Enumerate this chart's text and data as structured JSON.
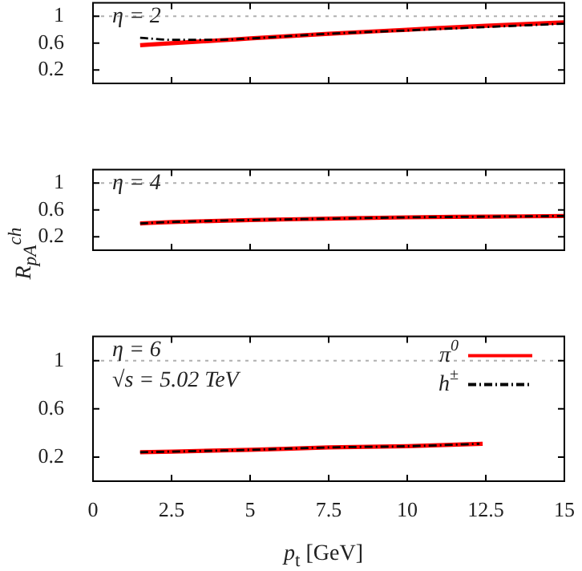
{
  "chart_data": [
    {
      "type": "line",
      "annotations": [
        "η = 2"
      ],
      "xlim": [
        0,
        15
      ],
      "xticks": [
        0,
        2.5,
        5,
        7.5,
        10,
        12.5,
        15
      ],
      "ylim": [
        0,
        1.2
      ],
      "yticks": [
        0.2,
        0.6,
        1
      ],
      "tick_labels": "y",
      "ref_lines": [
        {
          "axis": "y",
          "value": 1,
          "color": "#b0b0b0",
          "line_style": "dotted"
        }
      ],
      "series": [
        {
          "color": "#ff0000",
          "line_style": "solid",
          "x": [
            1.5,
            2.5,
            4,
            5,
            7.5,
            10,
            12.5,
            15
          ],
          "values": [
            0.57,
            0.6,
            0.64,
            0.67,
            0.74,
            0.8,
            0.86,
            0.91
          ]
        },
        {
          "color": "#000000",
          "line_style": "dashed",
          "x": [
            1.5,
            2.5,
            4,
            5,
            7.5,
            10,
            12.5,
            15
          ],
          "values": [
            0.68,
            0.65,
            0.65,
            0.67,
            0.74,
            0.79,
            0.84,
            0.89
          ]
        }
      ]
    },
    {
      "type": "line",
      "annotations": [
        "η = 4"
      ],
      "ylabel": "R$_{pA}$$^{ch}$",
      "xlim": [
        0,
        15
      ],
      "xticks": [
        0,
        2.5,
        5,
        7.5,
        10,
        12.5,
        15
      ],
      "ylim": [
        0,
        1.2
      ],
      "yticks": [
        0.2,
        0.6,
        1
      ],
      "tick_labels": "y",
      "ref_lines": [
        {
          "axis": "y",
          "value": 1,
          "color": "#b0b0b0",
          "line_style": "dotted"
        }
      ],
      "series": [
        {
          "color": "#ff0000",
          "line_style": "solid",
          "x": [
            1.5,
            2.5,
            5,
            7.5,
            10,
            12.5,
            15
          ],
          "values": [
            0.4,
            0.42,
            0.45,
            0.47,
            0.49,
            0.5,
            0.51
          ]
        },
        {
          "color": "#000000",
          "line_style": "dashed",
          "x": [
            1.5,
            2.5,
            5,
            7.5,
            10,
            12.5,
            15
          ],
          "values": [
            0.4,
            0.42,
            0.45,
            0.47,
            0.49,
            0.5,
            0.51
          ]
        }
      ]
    },
    {
      "type": "line",
      "annotations": [
        "η = 6",
        "√s = 5.02 TeV"
      ],
      "xlabel": "p$_{t}$ [GeV]",
      "xlim": [
        0,
        15
      ],
      "xticks": [
        0,
        2.5,
        5,
        7.5,
        10,
        12.5,
        15
      ],
      "ylim": [
        0,
        1.2
      ],
      "yticks": [
        0.2,
        0.6,
        1
      ],
      "legend": "top right",
      "ref_lines": [
        {
          "axis": "y",
          "value": 1,
          "color": "#b0b0b0",
          "line_style": "dotted"
        }
      ],
      "series": [
        {
          "name": "π$^{0}$",
          "color": "#ff0000",
          "line_style": "solid",
          "x": [
            1.5,
            5,
            7.5,
            10,
            12.4
          ],
          "values": [
            0.24,
            0.26,
            0.28,
            0.29,
            0.31
          ]
        },
        {
          "name": "h$^{±}$",
          "color": "#000000",
          "line_style": "dashed",
          "x": [
            1.5,
            5,
            7.5,
            10,
            12.3
          ],
          "values": [
            0.24,
            0.26,
            0.28,
            0.29,
            0.31
          ]
        }
      ]
    }
  ]
}
